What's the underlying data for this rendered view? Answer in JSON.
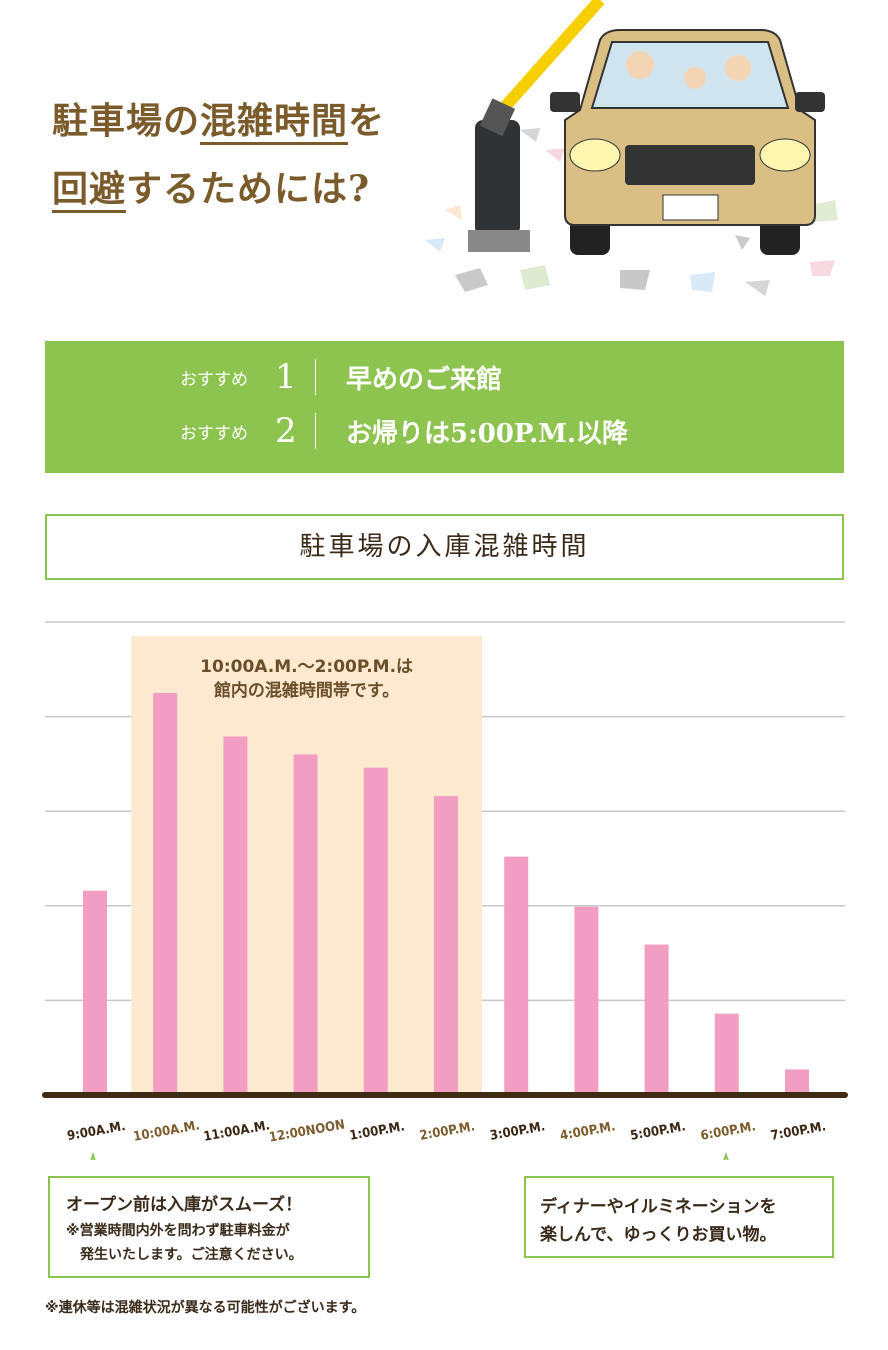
{
  "header": {
    "line1_pre": "駐車場の",
    "line1_em": "混雑時間",
    "line1_post": "を",
    "line2_em": "回避",
    "line2_post": "するためには?"
  },
  "recommendations": [
    {
      "label": "おすすめ",
      "number": "1",
      "text": "早めのご来館"
    },
    {
      "label": "おすすめ",
      "number": "2",
      "text": "お帰りは5:00P.M.以降"
    }
  ],
  "colors": {
    "green": "#8cc44f",
    "bar": "#f29ec3",
    "highlight": "#fde9d0",
    "brown": "#7b5b2b",
    "baseline": "#3f2a14"
  },
  "chart_data": {
    "type": "bar",
    "title": "駐車場の入庫混雑時間",
    "categories": [
      "9:00A.M.",
      "10:00A.M.",
      "11:00A.M.",
      "12:00NOON",
      "1:00P.M.",
      "2:00P.M.",
      "3:00P.M.",
      "4:00P.M.",
      "5:00P.M.",
      "6:00P.M.",
      "7:00P.M."
    ],
    "values": [
      2.16,
      4.25,
      3.79,
      3.6,
      3.46,
      3.16,
      2.52,
      1.99,
      1.59,
      0.86,
      0.27
    ],
    "ylim": [
      0,
      5
    ],
    "grid": true,
    "highlight": {
      "from": "10:00A.M.",
      "to": "2:00P.M.",
      "label_line1": "10:00A.M.〜2:00P.M.は",
      "label_line2": "館内の混雑時間帯です。"
    }
  },
  "callouts": {
    "left": {
      "title": "オープン前は入庫がスムーズ！",
      "note1": "※営業時間内外を問わず駐車料金が",
      "note2": "発生いたします。ご注意ください。"
    },
    "right": {
      "line1": "ディナーやイルミネーションを",
      "line2": "楽しんで、ゆっくりお買い物。"
    }
  },
  "footnote": "※連休等は混雑状況が異なる可能性がございます。"
}
